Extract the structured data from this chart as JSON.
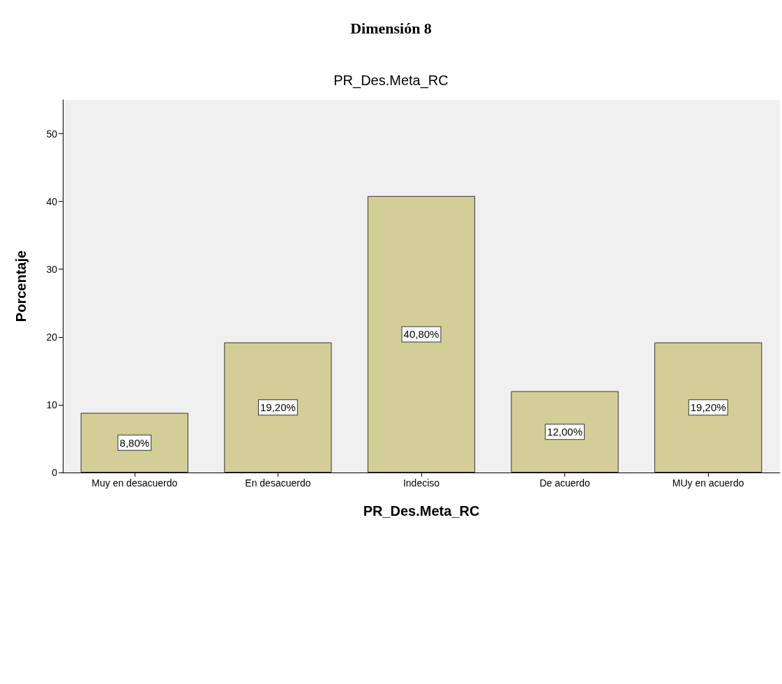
{
  "chart_data": {
    "type": "bar",
    "title": "Dimensión 8",
    "subtitle": "PR_Des.Meta_RC",
    "xlabel": "PR_Des.Meta_RC",
    "ylabel": "Porcentaje",
    "categories": [
      "Muy en desacuerdo",
      "En desacuerdo",
      "Indeciso",
      "De acuerdo",
      "MUy en acuerdo"
    ],
    "values": [
      8.8,
      19.2,
      40.8,
      12.0,
      19.2
    ],
    "value_labels": [
      "8,80%",
      "19,20%",
      "40,80%",
      "12,00%",
      "19,20%"
    ],
    "color": "#d3ce97",
    "ylim": [
      0,
      55
    ],
    "yticks": [
      0,
      10,
      20,
      30,
      40,
      50
    ],
    "grid": false
  }
}
